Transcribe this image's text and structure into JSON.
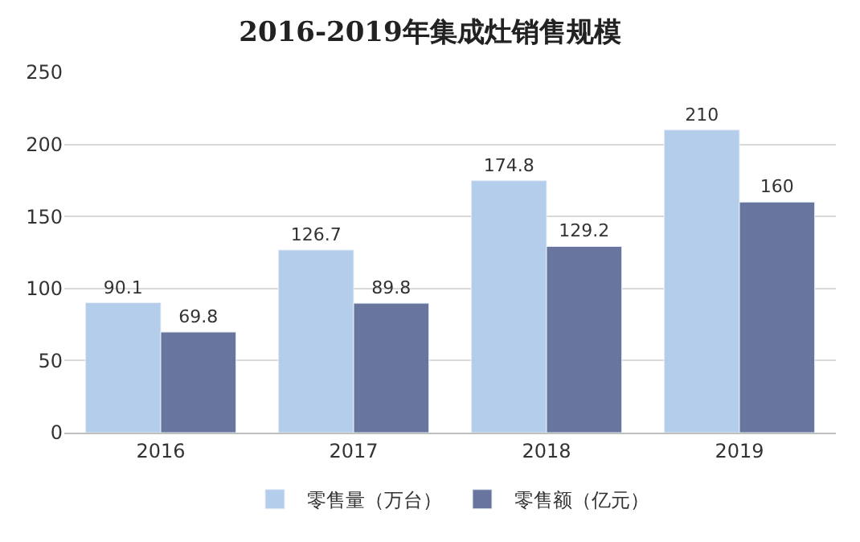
{
  "chart_data": {
    "type": "bar",
    "title": "2016-2019年集成灶销售规模",
    "categories": [
      "2016",
      "2017",
      "2018",
      "2019"
    ],
    "series": [
      {
        "name": "零售量（万台）",
        "color": "#b4cdeb",
        "values": [
          90.1,
          126.7,
          174.8,
          210
        ]
      },
      {
        "name": "零售额（亿元）",
        "color": "#68759c",
        "values": [
          69.8,
          89.8,
          129.2,
          160
        ]
      }
    ],
    "ylim": [
      0,
      250
    ],
    "yticks": [
      0,
      50,
      100,
      150,
      200,
      250
    ],
    "grid": "y",
    "legend": "bottom",
    "data_labels": true
  }
}
